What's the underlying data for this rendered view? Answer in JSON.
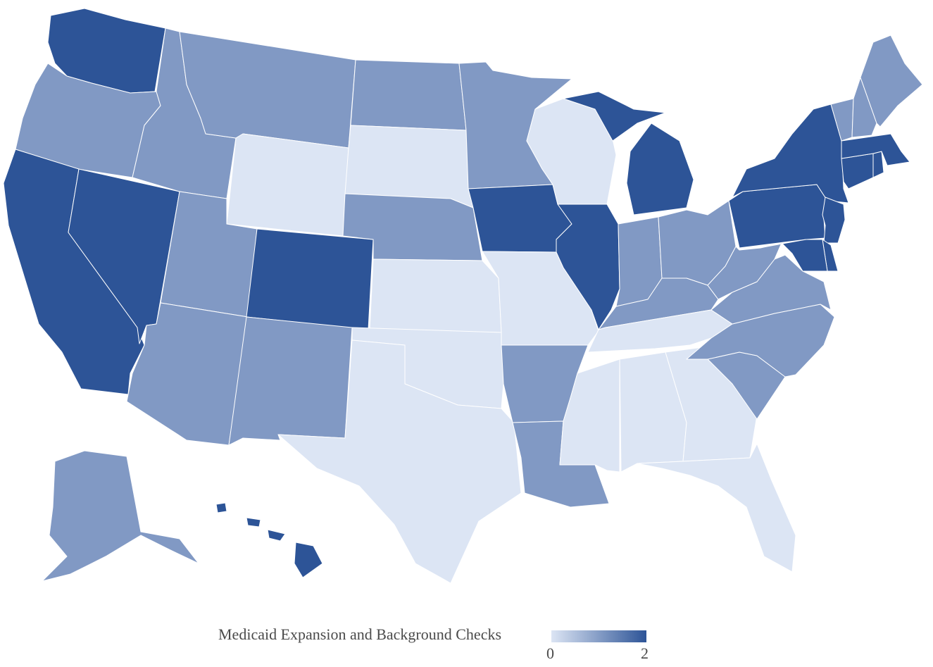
{
  "map": {
    "colors": {
      "0": "#dce5f4",
      "1": "#8199c4",
      "2": "#2d5497"
    },
    "states": [
      {
        "name": "WA",
        "value": 2
      },
      {
        "name": "OR",
        "value": 1
      },
      {
        "name": "CA",
        "value": 2
      },
      {
        "name": "NV",
        "value": 2
      },
      {
        "name": "ID",
        "value": 1
      },
      {
        "name": "MT",
        "value": 1
      },
      {
        "name": "WY",
        "value": 0
      },
      {
        "name": "UT",
        "value": 1
      },
      {
        "name": "AZ",
        "value": 1
      },
      {
        "name": "CO",
        "value": 2
      },
      {
        "name": "NM",
        "value": 1
      },
      {
        "name": "ND",
        "value": 1
      },
      {
        "name": "SD",
        "value": 0
      },
      {
        "name": "NE",
        "value": 1
      },
      {
        "name": "KS",
        "value": 0
      },
      {
        "name": "OK",
        "value": 0
      },
      {
        "name": "TX",
        "value": 0
      },
      {
        "name": "MN",
        "value": 1
      },
      {
        "name": "IA",
        "value": 2
      },
      {
        "name": "MO",
        "value": 0
      },
      {
        "name": "AR",
        "value": 1
      },
      {
        "name": "LA",
        "value": 1
      },
      {
        "name": "WI",
        "value": 0
      },
      {
        "name": "IL",
        "value": 2
      },
      {
        "name": "MI",
        "value": 2
      },
      {
        "name": "IN",
        "value": 1
      },
      {
        "name": "OH",
        "value": 1
      },
      {
        "name": "KY",
        "value": 1
      },
      {
        "name": "TN",
        "value": 0
      },
      {
        "name": "MS",
        "value": 0
      },
      {
        "name": "AL",
        "value": 0
      },
      {
        "name": "GA",
        "value": 0
      },
      {
        "name": "FL",
        "value": 0
      },
      {
        "name": "SC",
        "value": 1
      },
      {
        "name": "NC",
        "value": 1
      },
      {
        "name": "VA",
        "value": 1
      },
      {
        "name": "WV",
        "value": 1
      },
      {
        "name": "PA",
        "value": 2
      },
      {
        "name": "NY",
        "value": 2
      },
      {
        "name": "NJ",
        "value": 2
      },
      {
        "name": "DE",
        "value": 2
      },
      {
        "name": "MD",
        "value": 2
      },
      {
        "name": "CT",
        "value": 2
      },
      {
        "name": "RI",
        "value": 2
      },
      {
        "name": "MA",
        "value": 2
      },
      {
        "name": "VT",
        "value": 1
      },
      {
        "name": "NH",
        "value": 1
      },
      {
        "name": "ME",
        "value": 1
      },
      {
        "name": "AK",
        "value": 1
      },
      {
        "name": "HI",
        "value": 2
      }
    ]
  },
  "legend": {
    "title": "Medicaid Expansion and Background Checks",
    "min_label": "0",
    "max_label": "2",
    "gradient_start": "#dce5f4",
    "gradient_end": "#2d5497"
  }
}
